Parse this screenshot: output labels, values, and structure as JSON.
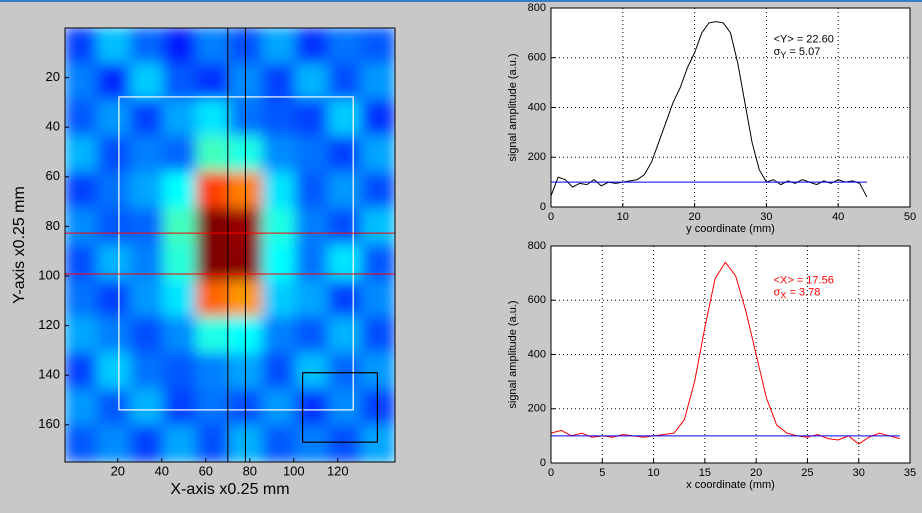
{
  "chart_data": [
    {
      "type": "heatmap",
      "xlabel": "X-axis x0.25 mm",
      "ylabel": "Y-axis x0.25 mm",
      "xlim": [
        -4,
        146
      ],
      "ylim": [
        0,
        175
      ],
      "y_reversed": true,
      "xticks": [
        20,
        40,
        60,
        80,
        100,
        120
      ],
      "yticks": [
        20,
        40,
        60,
        80,
        100,
        120,
        140,
        160
      ],
      "clim": [
        0,
        800
      ],
      "colormap": "jet",
      "z": [
        [
          150,
          250,
          180,
          120,
          200,
          160,
          230,
          140,
          190,
          170
        ],
        [
          200,
          130,
          260,
          170,
          140,
          210,
          150,
          240,
          160,
          220
        ],
        [
          170,
          220,
          150,
          230,
          280,
          190,
          170,
          150,
          260,
          140
        ],
        [
          240,
          160,
          200,
          180,
          350,
          320,
          210,
          190,
          150,
          230
        ],
        [
          150,
          190,
          230,
          300,
          650,
          600,
          280,
          170,
          220,
          160
        ],
        [
          210,
          170,
          180,
          350,
          800,
          780,
          320,
          200,
          160,
          250
        ],
        [
          160,
          240,
          200,
          330,
          800,
          790,
          300,
          190,
          280,
          170
        ],
        [
          190,
          150,
          220,
          280,
          620,
          580,
          260,
          230,
          150,
          210
        ],
        [
          230,
          200,
          160,
          210,
          320,
          300,
          200,
          170,
          240,
          160
        ],
        [
          150,
          260,
          190,
          170,
          200,
          230,
          160,
          250,
          180,
          220
        ],
        [
          220,
          170,
          240,
          150,
          190,
          160,
          220,
          140,
          210,
          150
        ],
        [
          170,
          210,
          150,
          230,
          160,
          240,
          170,
          200,
          160,
          230
        ]
      ],
      "shapes": [
        {
          "kind": "rect",
          "x": [
            20.5,
            127
          ],
          "y": [
            27.8,
            154
          ],
          "color": "#ffffff"
        },
        {
          "kind": "rect",
          "x": [
            104,
            138
          ],
          "y": [
            139,
            167
          ],
          "color": "#000000"
        },
        {
          "kind": "vline",
          "x": 70,
          "color": "#000000"
        },
        {
          "kind": "vline",
          "x": 78,
          "color": "#000000"
        },
        {
          "kind": "hline",
          "y": 82.7,
          "color": "#ff0000"
        },
        {
          "kind": "hline",
          "y": 99.2,
          "color": "#ff0000"
        }
      ]
    },
    {
      "type": "line",
      "xlabel": "y coordinate (mm)",
      "ylabel": "signal amplitude (a.u.)",
      "xlim": [
        0,
        50
      ],
      "ylim": [
        0,
        800
      ],
      "xticks": [
        0,
        10,
        20,
        30,
        40,
        50
      ],
      "yticks": [
        0,
        200,
        400,
        600,
        800
      ],
      "grid": true,
      "x": [
        0,
        1,
        2,
        3,
        4,
        5,
        6,
        7,
        8,
        9,
        10,
        11,
        12,
        13,
        14,
        15,
        16,
        17,
        18,
        19,
        20,
        21,
        22,
        23,
        24,
        25,
        26,
        27,
        28,
        29,
        30,
        31,
        32,
        33,
        34,
        35,
        36,
        37,
        38,
        39,
        40,
        41,
        42,
        43,
        44
      ],
      "series": [
        {
          "color": "#000000",
          "values": [
            45,
            120,
            110,
            80,
            95,
            90,
            110,
            85,
            100,
            95,
            100,
            105,
            110,
            130,
            180,
            260,
            340,
            420,
            480,
            560,
            620,
            700,
            740,
            745,
            740,
            700,
            580,
            420,
            260,
            150,
            100,
            110,
            90,
            105,
            95,
            110,
            100,
            90,
            105,
            95,
            110,
            100,
            105,
            95,
            40
          ]
        }
      ],
      "hline": {
        "y": 100,
        "x": [
          0,
          44
        ],
        "color": "#0000ff"
      },
      "annotation": {
        "mean": "<Y> = 22.60",
        "sigma": "σ",
        "sigma_sub": "Y",
        "sigma_value": " = 5.07",
        "color": "#000000"
      }
    },
    {
      "type": "line",
      "xlabel": "x coordinate (mm)",
      "ylabel": "signal amplitude (a.u.)",
      "xlim": [
        0,
        35
      ],
      "ylim": [
        0,
        800
      ],
      "xticks": [
        0,
        5,
        10,
        15,
        20,
        25,
        30,
        35
      ],
      "yticks": [
        0,
        200,
        400,
        600,
        800
      ],
      "grid": true,
      "x": [
        0,
        1,
        2,
        3,
        4,
        5,
        6,
        7,
        8,
        9,
        10,
        11,
        12,
        13,
        14,
        15,
        16,
        17,
        18,
        19,
        20,
        21,
        22,
        23,
        24,
        25,
        26,
        27,
        28,
        29,
        30,
        31,
        32,
        33,
        34
      ],
      "series": [
        {
          "color": "#ff0000",
          "values": [
            110,
            120,
            100,
            110,
            95,
            100,
            95,
            105,
            100,
            95,
            100,
            105,
            110,
            160,
            300,
            500,
            680,
            740,
            690,
            560,
            400,
            240,
            140,
            110,
            100,
            95,
            105,
            90,
            85,
            100,
            70,
            95,
            110,
            100,
            90
          ]
        }
      ],
      "hline": {
        "y": 100,
        "x": [
          0,
          34
        ],
        "color": "#0000ff"
      },
      "annotation": {
        "mean": "<X> = 17.56",
        "sigma": "σ",
        "sigma_sub": "X",
        "sigma_value": " = 3.78",
        "color": "#ff0000"
      }
    }
  ]
}
